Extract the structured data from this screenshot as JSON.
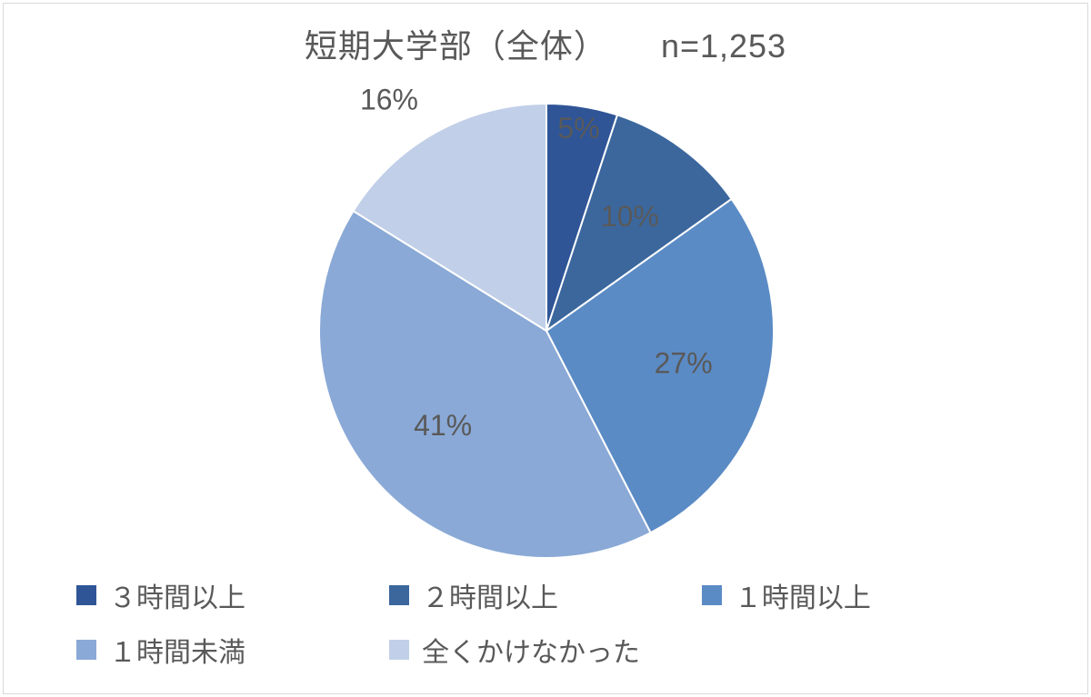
{
  "chart": {
    "type": "pie",
    "title_main": "短期大学部（全体）",
    "title_n": "n=1,253",
    "title_fontsize": 36,
    "title_color": "#595959",
    "background_color": "#ffffff",
    "border_color": "#d9d9d9",
    "label_fontsize": 32,
    "label_color": "#595959",
    "legend_fontsize": 30,
    "legend_swatch_size": 22,
    "pie_radius": 250,
    "pie_center_offset_y": 0,
    "start_angle_deg": 0,
    "slices": [
      {
        "name": "３時間以上",
        "value": 5,
        "label": "5%",
        "color": "#2f5597",
        "label_pos": "inside"
      },
      {
        "name": "２時間以上",
        "value": 10,
        "label": "10%",
        "color": "#3b679d",
        "label_pos": "inside"
      },
      {
        "name": "１時間以上",
        "value": 27,
        "label": "27%",
        "color": "#5b8bc5",
        "label_pos": "inside"
      },
      {
        "name": "１時間未満",
        "value": 41,
        "label": "41%",
        "color": "#8aa9d6",
        "label_pos": "inside"
      },
      {
        "name": "全くかけなかった",
        "value": 16,
        "label": "16%",
        "color": "#c1cfe8",
        "label_pos": "outside"
      }
    ],
    "legend": [
      {
        "text": "３時間以上",
        "color": "#2f5597"
      },
      {
        "text": "２時間以上",
        "color": "#3b679d"
      },
      {
        "text": "１時間以上",
        "color": "#5b8bc5"
      },
      {
        "text": "１時間未満",
        "color": "#8aa9d6"
      },
      {
        "text": "全くかけなかった",
        "color": "#c1cfe8"
      }
    ]
  }
}
